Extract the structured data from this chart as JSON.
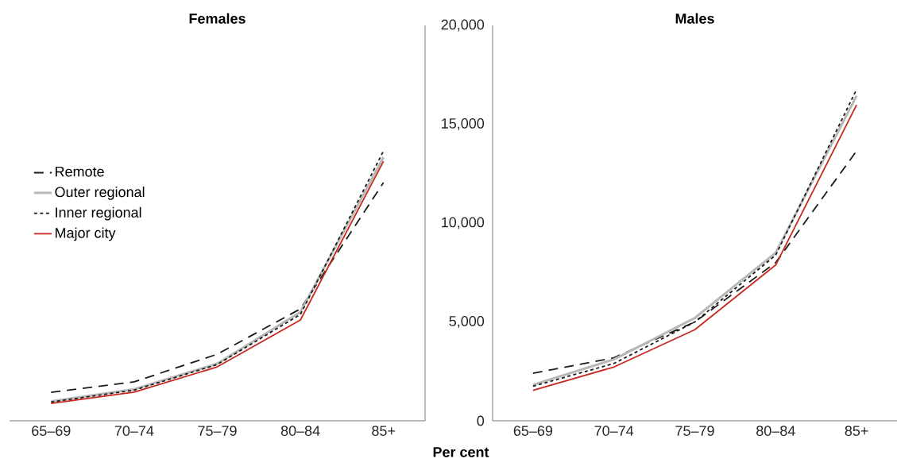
{
  "chart_data": [
    {
      "type": "line",
      "title": "Females",
      "categories": [
        "65–69",
        "70–74",
        "75–79",
        "80–84",
        "85+"
      ],
      "ylim": [
        0,
        20000
      ],
      "tick_labels": "x",
      "legend": "left",
      "series": [
        {
          "name": "Remote",
          "color": "#1a1a1a",
          "line_style": "dashed",
          "values": [
            1440,
            1970,
            3370,
            5660,
            12050
          ]
        },
        {
          "name": "Outer regional",
          "color": "#b8b8b8",
          "line_style": "solid",
          "values": [
            980,
            1600,
            2890,
            5500,
            13330
          ]
        },
        {
          "name": "Inner regional",
          "color": "#1a1a1a",
          "line_style": "dotted",
          "values": [
            950,
            1550,
            2850,
            5380,
            13650
          ]
        },
        {
          "name": "Major city",
          "color": "#c8281e",
          "line_style": "solid",
          "values": [
            880,
            1450,
            2730,
            5100,
            13130
          ]
        }
      ]
    },
    {
      "type": "line",
      "title": "Males",
      "xlabel": "Per cent",
      "categories": [
        "65–69",
        "70–74",
        "75–79",
        "80–84",
        "85+"
      ],
      "ylim": [
        0,
        20000
      ],
      "yticks": [
        0,
        {
          "value": 5000,
          "label": "5,000"
        },
        {
          "value": 10000,
          "label": "10,000"
        },
        {
          "value": 15000,
          "label": "15,000"
        },
        {
          "value": 20000,
          "label": "20,000"
        }
      ],
      "series": [
        {
          "color": "#1a1a1a",
          "line_style": "dashed",
          "values": [
            2400,
            3190,
            5000,
            8000,
            13650
          ]
        },
        {
          "color": "#b8b8b8",
          "line_style": "solid",
          "values": [
            1820,
            3110,
            5200,
            8500,
            16440
          ]
        },
        {
          "color": "#1a1a1a",
          "line_style": "dotted",
          "values": [
            1750,
            2900,
            5000,
            8380,
            16760
          ]
        },
        {
          "color": "#c8281e",
          "line_style": "solid",
          "values": [
            1540,
            2720,
            4610,
            7880,
            15980
          ]
        }
      ]
    }
  ]
}
